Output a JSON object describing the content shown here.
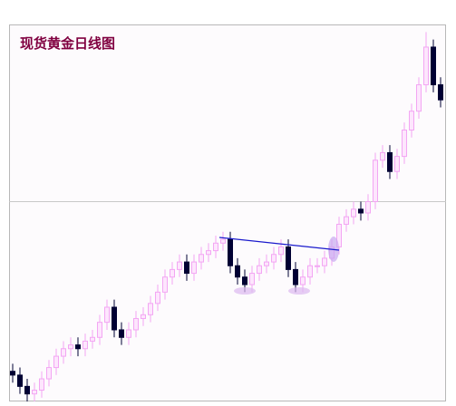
{
  "chart_data": {
    "type": "candlestick",
    "title": "现货黄金日线图",
    "open": [
      8,
      7,
      4,
      2,
      3,
      6,
      9,
      12,
      14,
      15,
      14,
      16,
      17,
      21,
      25,
      19,
      17,
      19,
      22,
      23,
      26,
      29,
      33,
      35,
      37,
      34,
      37,
      39,
      40,
      42,
      43,
      36,
      33,
      31,
      34,
      36,
      37,
      39,
      41,
      35,
      31,
      33,
      36,
      36,
      38,
      41,
      47,
      49,
      51,
      50,
      53,
      64,
      66,
      61,
      65,
      72,
      77,
      84,
      94,
      84
    ],
    "high": [
      10,
      9,
      6,
      5,
      8,
      11,
      14,
      16,
      17,
      17,
      18,
      19,
      23,
      27,
      27,
      21,
      21,
      24,
      25,
      28,
      31,
      35,
      37,
      39,
      39,
      39,
      41,
      42,
      44,
      45,
      45,
      38,
      35,
      36,
      38,
      39,
      41,
      43,
      43,
      37,
      35,
      38,
      38,
      40,
      43,
      49,
      51,
      53,
      53,
      55,
      66,
      68,
      68,
      67,
      74,
      79,
      86,
      98,
      96,
      86
    ],
    "low": [
      5,
      2,
      0,
      0,
      1,
      4,
      7,
      10,
      12,
      12,
      12,
      14,
      15,
      19,
      17,
      15,
      15,
      17,
      20,
      21,
      24,
      27,
      31,
      33,
      32,
      32,
      35,
      37,
      38,
      40,
      34,
      31,
      29,
      29,
      32,
      34,
      35,
      37,
      33,
      29,
      29,
      31,
      34,
      34,
      36,
      39,
      45,
      47,
      48,
      48,
      51,
      62,
      59,
      59,
      63,
      70,
      75,
      82,
      82,
      78
    ],
    "close": [
      7,
      4,
      2,
      3,
      6,
      9,
      12,
      14,
      15,
      14,
      16,
      17,
      21,
      25,
      19,
      17,
      19,
      22,
      23,
      26,
      29,
      33,
      35,
      37,
      34,
      37,
      39,
      40,
      42,
      43,
      36,
      33,
      31,
      34,
      36,
      37,
      39,
      41,
      35,
      31,
      33,
      36,
      36,
      38,
      41,
      47,
      49,
      51,
      50,
      53,
      64,
      66,
      61,
      65,
      72,
      77,
      84,
      94,
      84,
      80
    ],
    "up_color": "#f3a6f3",
    "down_color": "#000033",
    "ylim": [
      0,
      100
    ],
    "hline": 53
  }
}
